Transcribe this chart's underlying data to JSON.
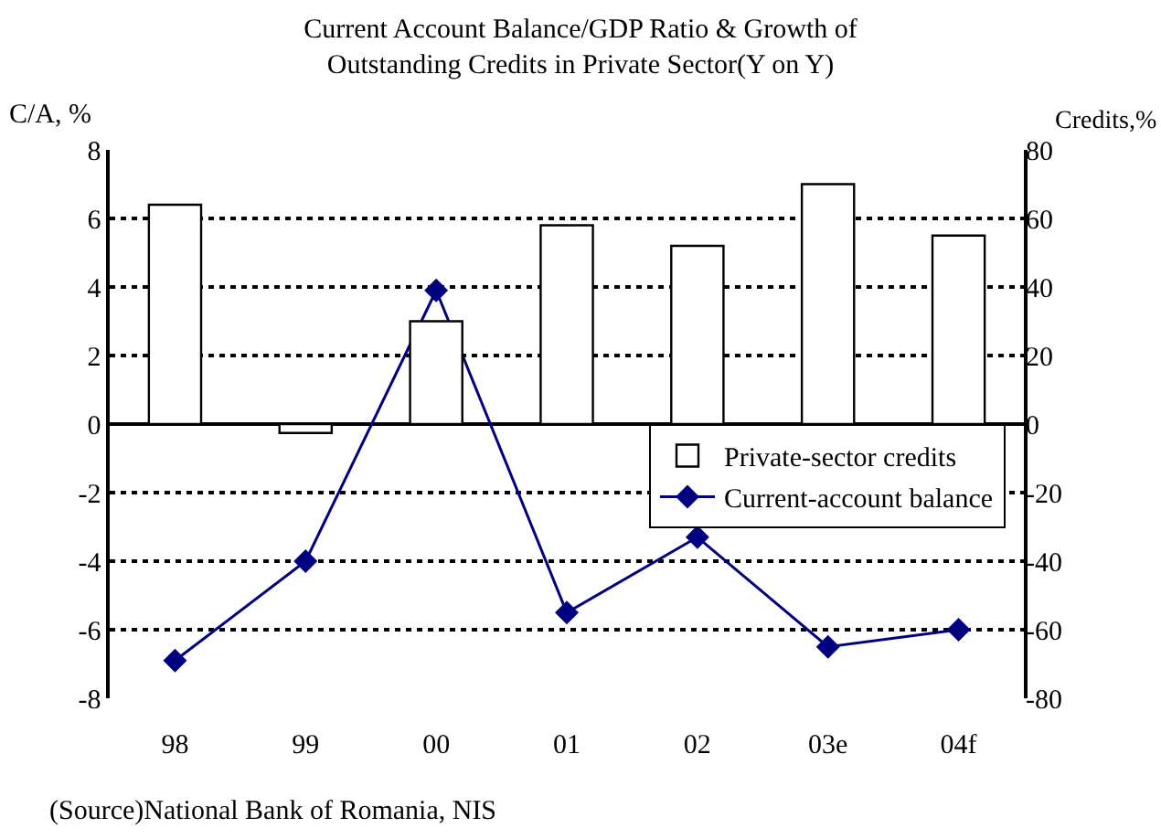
{
  "chart_data": {
    "type": "bar",
    "title": "Current Account Balance/GDP Ratio & Growth of\nOutstanding Credits in Private Sector(Y on Y)",
    "categories": [
      "98",
      "99",
      "00",
      "01",
      "02",
      "03e",
      "04f"
    ],
    "series": [
      {
        "name": "Private-sector credits",
        "axis": "y2",
        "color": "#ffffff",
        "values": [
          64,
          -2.6,
          30,
          58,
          52,
          70,
          55
        ]
      },
      {
        "name": "Current-account balance",
        "type": "line",
        "axis": "y",
        "color": "#000080",
        "marker": "diamond",
        "values": [
          -6.9,
          -4.0,
          3.9,
          -5.5,
          -3.3,
          -6.5,
          -6.0
        ]
      }
    ],
    "ylabel": "C/A, %",
    "y2label": "Credits,%",
    "ylim": [
      -8,
      8
    ],
    "yticks": [
      -8,
      -6,
      -4,
      -2,
      0,
      2,
      4,
      6,
      8
    ],
    "y2lim": [
      -80,
      80
    ],
    "y2ticks": [
      -80,
      -60,
      -40,
      -20,
      0,
      20,
      40,
      60,
      80
    ],
    "grid": "y",
    "legend": "right",
    "annotations": [
      "(Source)National Bank of Romania, NIS"
    ]
  }
}
